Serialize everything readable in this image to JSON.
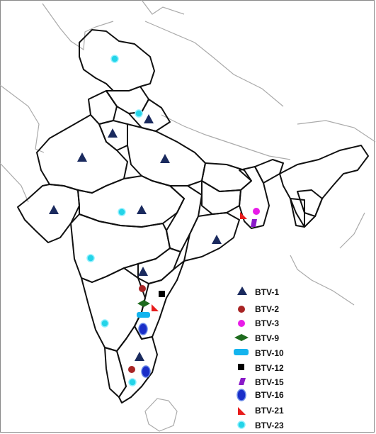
{
  "legend": {
    "items": [
      {
        "label": "BTV-1",
        "marker": "triangle",
        "color": "#1a2a5e"
      },
      {
        "label": "BTV-2",
        "marker": "circle",
        "color": "#a82424"
      },
      {
        "label": "BTV-3",
        "marker": "circle",
        "color": "#e81ce8"
      },
      {
        "label": "BTV-9",
        "marker": "diamond",
        "color": "#1e6b1e"
      },
      {
        "label": "BTV-10",
        "marker": "rounded-rect",
        "color": "#14b4ee"
      },
      {
        "label": "BTV-12",
        "marker": "square",
        "color": "#000000"
      },
      {
        "label": "BTV-15",
        "marker": "parallelogram",
        "color": "#8a1ac8"
      },
      {
        "label": "BTV-16",
        "marker": "ellipse",
        "color": "#1a2ec8"
      },
      {
        "label": "BTV-21",
        "marker": "right-triangle",
        "color": "#e81c1c"
      },
      {
        "label": "BTV-23",
        "marker": "ring-circle",
        "color": "#24d4e8"
      }
    ]
  },
  "colors": {
    "state_border": "#111111",
    "neighbor_border": "#aaaaaa",
    "background": "#ffffff"
  }
}
